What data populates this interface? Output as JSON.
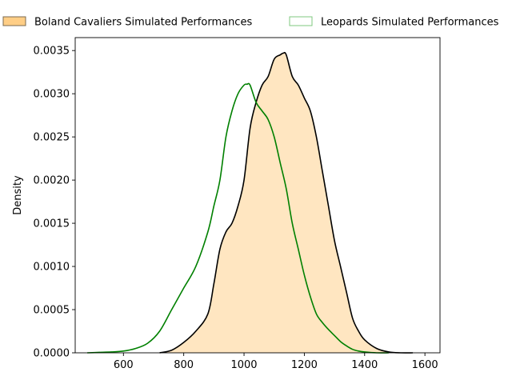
{
  "chart_data": {
    "type": "area",
    "title": "",
    "xlabel": "",
    "ylabel": "Density",
    "xlim": [
      440,
      1650
    ],
    "ylim": [
      0,
      0.00365
    ],
    "xticks": [
      600,
      800,
      1000,
      1200,
      1400,
      1600
    ],
    "yticks": [
      0.0,
      0.0005,
      0.001,
      0.0015,
      0.002,
      0.0025,
      0.003,
      0.0035
    ],
    "xtick_labels": [
      "600",
      "800",
      "1000",
      "1200",
      "1400",
      "1600"
    ],
    "ytick_labels": [
      "0.0000",
      "0.0005",
      "0.0010",
      "0.0015",
      "0.0020",
      "0.0025",
      "0.0030",
      "0.0035"
    ],
    "grid": false,
    "legend_placement": "top, outside plot",
    "series": [
      {
        "name": "Boland Cavaliers Simulated Performances",
        "fill": "#ffe6c1",
        "legend_fill": "#ffce86",
        "line": "#000000",
        "filled": true,
        "x": [
          720,
          760,
          800,
          840,
          880,
          900,
          920,
          940,
          960,
          980,
          1000,
          1020,
          1040,
          1060,
          1080,
          1100,
          1120,
          1130,
          1140,
          1160,
          1180,
          1200,
          1220,
          1240,
          1260,
          1280,
          1300,
          1320,
          1340,
          1360,
          1380,
          1400,
          1440,
          1480,
          1520,
          1560
        ],
        "y": [
          0.0,
          3e-05,
          0.00012,
          0.00025,
          0.00045,
          0.0008,
          0.0012,
          0.0014,
          0.0015,
          0.0017,
          0.002,
          0.0026,
          0.0029,
          0.0031,
          0.0032,
          0.0034,
          0.00345,
          0.00347,
          0.00345,
          0.0032,
          0.0031,
          0.00295,
          0.0028,
          0.0025,
          0.0021,
          0.0017,
          0.0013,
          0.001,
          0.0007,
          0.0004,
          0.00025,
          0.00015,
          5e-05,
          1e-05,
          0.0,
          0.0
        ]
      },
      {
        "name": "Leopards Simulated Performances",
        "legend_fill": "#ffffff",
        "legend_edge": "#7fc97f",
        "line": "#008000",
        "filled": false,
        "x": [
          480,
          520,
          560,
          600,
          640,
          680,
          720,
          760,
          800,
          840,
          880,
          900,
          920,
          940,
          960,
          980,
          1000,
          1010,
          1020,
          1040,
          1060,
          1080,
          1100,
          1120,
          1140,
          1160,
          1180,
          1200,
          1220,
          1240,
          1260,
          1280,
          1300,
          1320,
          1340,
          1360,
          1380,
          1400,
          1440,
          1480
        ],
        "y": [
          0.0,
          5e-06,
          1e-05,
          2e-05,
          5e-05,
          0.00011,
          0.00025,
          0.0005,
          0.00075,
          0.001,
          0.0014,
          0.0017,
          0.002,
          0.0025,
          0.0028,
          0.003,
          0.0031,
          0.00311,
          0.0031,
          0.0029,
          0.0028,
          0.0027,
          0.0025,
          0.0022,
          0.0019,
          0.0015,
          0.0012,
          0.0009,
          0.00065,
          0.00045,
          0.00035,
          0.00027,
          0.0002,
          0.00013,
          8e-05,
          4e-05,
          2e-05,
          1e-05,
          0.0,
          0.0
        ]
      }
    ]
  }
}
